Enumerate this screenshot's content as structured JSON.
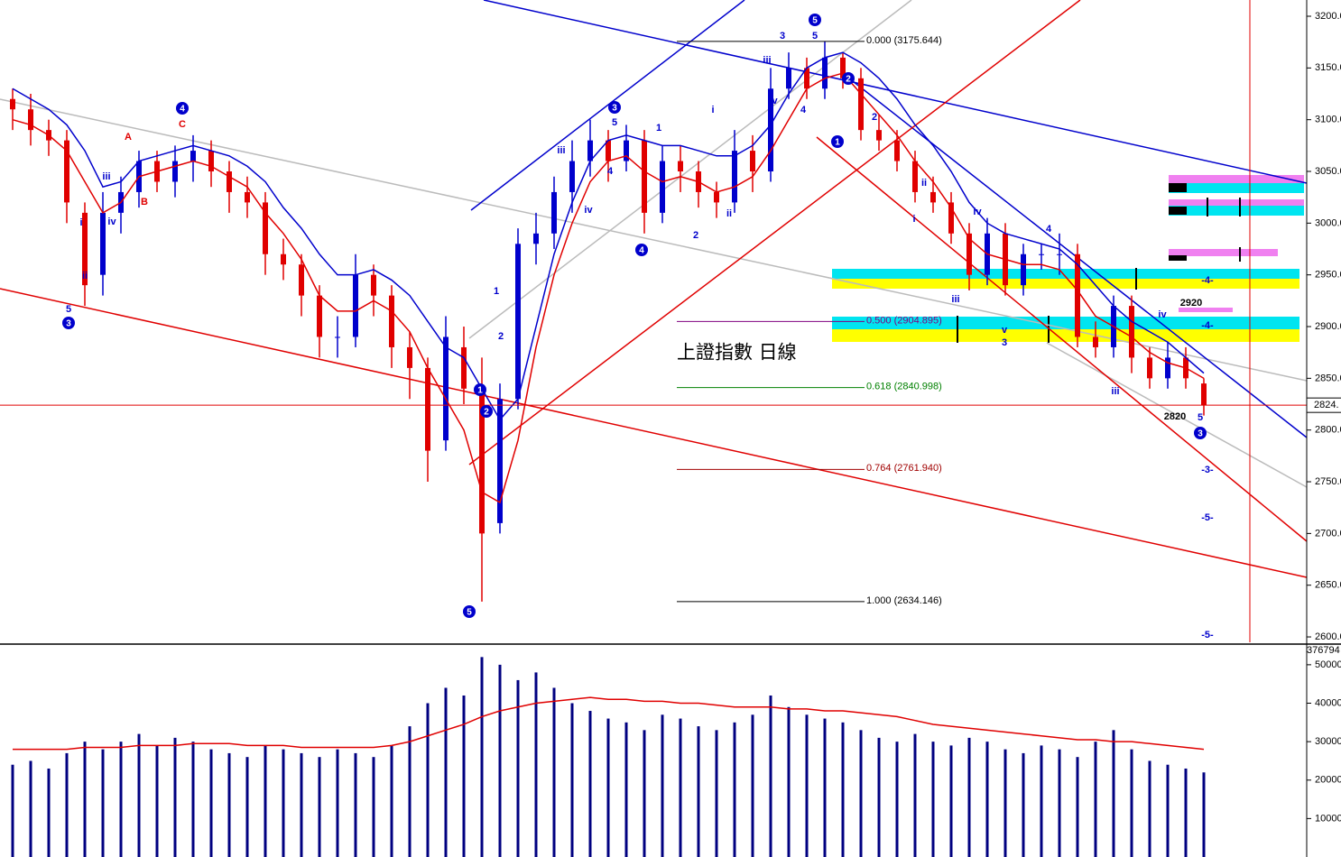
{
  "chart_data": [
    {
      "type": "candlestick",
      "title": "上證指數 日線",
      "open": [
        3120,
        3110,
        3090,
        3080,
        3010,
        2950,
        3010,
        3030,
        3060,
        3040,
        3060,
        3070,
        3050,
        3030,
        3020,
        2970,
        2960,
        2930,
        2890,
        2890,
        2950,
        2930,
        2880,
        2860,
        2790,
        2880,
        2840,
        2710,
        2830,
        2980,
        2990,
        3030,
        3060,
        3080,
        3060,
        3080,
        3010,
        3060,
        3050,
        3030,
        3020,
        3070,
        3050,
        3130,
        3150,
        3130,
        3160,
        3140,
        3090,
        3080,
        3060,
        3030,
        3020,
        2990,
        2950,
        2990,
        2940,
        2970,
        2970,
        2970,
        2890,
        2880,
        2920,
        2870,
        2850,
        2870,
        2845
      ],
      "high": [
        3130,
        3125,
        3100,
        3090,
        3020,
        3030,
        3045,
        3070,
        3070,
        3075,
        3085,
        3080,
        3060,
        3045,
        3030,
        2985,
        2970,
        2940,
        2910,
        2970,
        2960,
        2940,
        2895,
        2870,
        2910,
        2900,
        2870,
        2845,
        2995,
        3010,
        3045,
        3080,
        3100,
        3090,
        3095,
        3090,
        3075,
        3075,
        3060,
        3040,
        3090,
        3085,
        3150,
        3165,
        3160,
        3175.644,
        3165,
        3150,
        3105,
        3090,
        3070,
        3045,
        3030,
        3000,
        3005,
        3000,
        2980,
        2980,
        2990,
        2980,
        2905,
        2930,
        2930,
        2880,
        2885,
        2880,
        2850
      ],
      "low": [
        3090,
        3075,
        3065,
        3000,
        2920,
        2930,
        2990,
        3015,
        3030,
        3025,
        3040,
        3035,
        3010,
        3005,
        2950,
        2945,
        2910,
        2870,
        2870,
        2880,
        2910,
        2860,
        2830,
        2750,
        2780,
        2825,
        2634.146,
        2700,
        2820,
        2960,
        2975,
        3010,
        3045,
        3040,
        3050,
        2990,
        3000,
        3030,
        3015,
        3005,
        3010,
        3030,
        3040,
        3120,
        3120,
        3120,
        3130,
        3080,
        3070,
        3050,
        3020,
        3010,
        2980,
        2935,
        2940,
        2930,
        2930,
        2955,
        2950,
        2880,
        2870,
        2870,
        2855,
        2840,
        2840,
        2840,
        2814
      ],
      "close": [
        3110,
        3090,
        3080,
        3020,
        2940,
        3010,
        3030,
        3060,
        3040,
        3060,
        3070,
        3050,
        3030,
        3020,
        2970,
        2960,
        2930,
        2890,
        2890,
        2950,
        2930,
        2880,
        2860,
        2780,
        2890,
        2840,
        2700,
        2830,
        2980,
        2990,
        3030,
        3060,
        3080,
        3060,
        3080,
        3010,
        3060,
        3050,
        3030,
        3020,
        3070,
        3050,
        3130,
        3150,
        3130,
        3160,
        3140,
        3090,
        3080,
        3060,
        3030,
        3020,
        2990,
        2950,
        2990,
        2940,
        2970,
        2970,
        2970,
        2890,
        2880,
        2920,
        2870,
        2850,
        2870,
        2850,
        2824
      ],
      "up_color": "#0000cc",
      "down_color": "#e00000",
      "lines": [
        {
          "color": "#e00000",
          "values": [
            3100,
            3095,
            3085,
            3070,
            3040,
            3010,
            3020,
            3045,
            3050,
            3055,
            3060,
            3055,
            3045,
            3035,
            3010,
            2990,
            2965,
            2930,
            2915,
            2915,
            2925,
            2915,
            2895,
            2860,
            2830,
            2800,
            2740,
            2730,
            2790,
            2880,
            2950,
            3000,
            3040,
            3060,
            3065,
            3050,
            3040,
            3045,
            3040,
            3030,
            3035,
            3045,
            3070,
            3100,
            3130,
            3140,
            3145,
            3125,
            3105,
            3085,
            3060,
            3040,
            3015,
            2985,
            2970,
            2965,
            2960,
            2960,
            2955,
            2935,
            2910,
            2900,
            2890,
            2875,
            2865,
            2860,
            2850
          ]
        },
        {
          "color": "#0000cc",
          "values": [
            3130,
            3120,
            3110,
            3095,
            3070,
            3035,
            3040,
            3060,
            3065,
            3070,
            3075,
            3070,
            3065,
            3055,
            3040,
            3015,
            2995,
            2970,
            2950,
            2950,
            2955,
            2945,
            2930,
            2905,
            2880,
            2870,
            2840,
            2810,
            2830,
            2900,
            2970,
            3020,
            3060,
            3080,
            3085,
            3080,
            3075,
            3075,
            3070,
            3065,
            3065,
            3075,
            3095,
            3125,
            3150,
            3160,
            3165,
            3155,
            3140,
            3120,
            3095,
            3075,
            3050,
            3020,
            3000,
            2990,
            2985,
            2980,
            2975,
            2960,
            2940,
            2920,
            2905,
            2895,
            2885,
            2870,
            2855
          ]
        }
      ],
      "ylim": [
        2594.8,
        3215.7
      ],
      "yticks": [
        {
          "value": 2600,
          "label": "2600.0"
        },
        {
          "value": 2650,
          "label": "2650.0"
        },
        {
          "value": 2700,
          "label": "2700.0"
        },
        {
          "value": 2750,
          "label": "2750.0"
        },
        {
          "value": 2800,
          "label": "2800.0"
        },
        {
          "value": 2850,
          "label": "2850.0"
        },
        {
          "value": 2900,
          "label": "2900.0"
        },
        {
          "value": 2950,
          "label": "2950.0"
        },
        {
          "value": 3000,
          "label": "3000.0"
        },
        {
          "value": 3050,
          "label": "3050.0"
        },
        {
          "value": 3100,
          "label": "3100.0"
        },
        {
          "value": 3150,
          "label": "3150.0"
        },
        {
          "value": 3200,
          "label": "3200.0"
        }
      ],
      "last_price": {
        "value": 2824,
        "label": "2824."
      },
      "fib_levels": [
        {
          "value": 3175.644,
          "label": "0.000 (3175.644)",
          "color": "#000000"
        },
        {
          "value": 2904.895,
          "label": "0.500 (2904.895)",
          "color": "#800080"
        },
        {
          "value": 2840.998,
          "label": "0.618 (2840.998)",
          "color": "#008000"
        },
        {
          "value": 2761.94,
          "label": "0.764 (2761.940)",
          "color": "#a00000"
        },
        {
          "value": 2634.146,
          "label": "1.000 (2634.146)",
          "color": "#000000"
        }
      ],
      "annotations": [
        "5",
        "3",
        "4",
        "C",
        "A",
        "B",
        "iii",
        "iv",
        "ii",
        "i",
        "5",
        "1",
        "2",
        "3",
        "4",
        "5",
        "1",
        "2",
        "3",
        "2920",
        "2820",
        "-4-",
        "-4-",
        "-3-",
        "-5-",
        "-5-",
        "iii",
        "iv",
        "1",
        "i",
        "ii",
        "2",
        "iii",
        "iv",
        "3",
        "5",
        "4",
        "iii",
        "iv",
        "v",
        "3",
        "4",
        "iii",
        "iv",
        "5",
        "2",
        "ii",
        "1",
        "2",
        "i",
        "5",
        "4"
      ]
    },
    {
      "type": "bar",
      "color": "#000080",
      "values": [
        24000,
        25000,
        23000,
        27000,
        30000,
        28000,
        30000,
        32000,
        29000,
        31000,
        30000,
        28000,
        27000,
        26000,
        29000,
        28000,
        27000,
        26000,
        28000,
        27000,
        26000,
        29000,
        34000,
        40000,
        44000,
        42000,
        52000,
        50000,
        46000,
        48000,
        44000,
        40000,
        38000,
        36000,
        35000,
        33000,
        37000,
        36000,
        34000,
        33000,
        35000,
        37000,
        42000,
        39000,
        37000,
        36000,
        35000,
        33000,
        31000,
        30000,
        32000,
        30000,
        29000,
        31000,
        30000,
        28000,
        27000,
        29000,
        28000,
        26000,
        30000,
        33000,
        28000,
        25000,
        24000,
        23000,
        22000
      ],
      "lines": [
        {
          "color": "#e00000",
          "values": [
            28000,
            28000,
            28000,
            28000,
            28500,
            28500,
            28500,
            29000,
            29000,
            29000,
            29500,
            29500,
            29500,
            29000,
            29000,
            29000,
            28500,
            28500,
            28500,
            28500,
            28500,
            29000,
            30000,
            31500,
            33000,
            34500,
            36500,
            38000,
            39000,
            40000,
            40500,
            41000,
            41500,
            41000,
            41000,
            40500,
            40500,
            40000,
            40000,
            39500,
            39000,
            39000,
            39000,
            38500,
            38500,
            38000,
            38000,
            37500,
            37000,
            36500,
            35500,
            34500,
            34000,
            33500,
            33000,
            32500,
            32000,
            31500,
            31000,
            30500,
            30500,
            30000,
            30000,
            29500,
            29000,
            28500,
            28000
          ]
        }
      ],
      "ylim": [
        0,
        54900
      ],
      "yticks": [
        10000,
        20000,
        30000,
        40000,
        50000
      ],
      "annotations": [
        "376794"
      ]
    }
  ]
}
